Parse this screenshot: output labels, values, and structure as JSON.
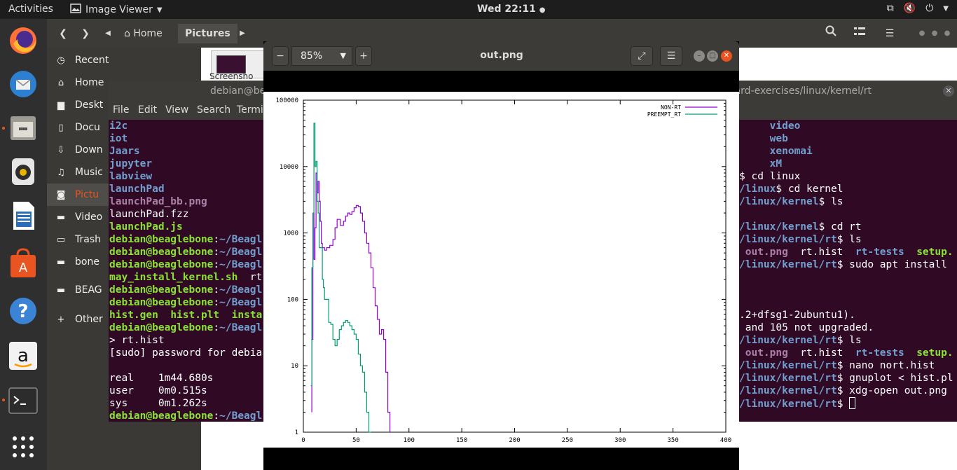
{
  "topbar": {
    "activities": "Activities",
    "app_name": "Image Viewer",
    "clock": "Wed 22:11"
  },
  "dock": {
    "items": [
      "firefox-icon",
      "thunderbird-icon",
      "files-icon",
      "rhythmbox-icon",
      "writer-icon",
      "software-icon",
      "help-icon",
      "amazon-icon",
      "terminal-icon",
      "app-grid-icon"
    ]
  },
  "files": {
    "breadcrumb": [
      "Home",
      "Pictures"
    ],
    "sidebar": [
      {
        "label": "Recent",
        "icon": "clock-icon"
      },
      {
        "label": "Home",
        "icon": "home-icon"
      },
      {
        "label": "Deskt",
        "icon": "folder-icon"
      },
      {
        "label": "Docu",
        "icon": "document-icon"
      },
      {
        "label": "Down",
        "icon": "download-icon"
      },
      {
        "label": "Music",
        "icon": "music-icon"
      },
      {
        "label": "Pictu",
        "icon": "camera-icon"
      },
      {
        "label": "Video",
        "icon": "video-icon"
      },
      {
        "label": "Trash",
        "icon": "trash-icon"
      },
      {
        "label": "bone",
        "icon": "drive-icon"
      },
      {
        "label": "BEAG",
        "icon": "drive-icon"
      },
      {
        "label": "Other",
        "icon": "plus-icon"
      }
    ],
    "thumb_label": "Screensho"
  },
  "terminal": {
    "title_left": "debian@be",
    "title_right": "oard-exercises/linux/kernel/rt",
    "menu": [
      "File",
      "Edit",
      "View",
      "Search",
      "Termi"
    ],
    "left_lines": [
      [
        {
          "t": "i2c",
          "c": "blue"
        }
      ],
      [
        {
          "t": "iot",
          "c": "blue"
        }
      ],
      [
        {
          "t": "Jaars",
          "c": "blue"
        }
      ],
      [
        {
          "t": "jupyter",
          "c": "blue"
        }
      ],
      [
        {
          "t": "labview",
          "c": "blue"
        }
      ],
      [
        {
          "t": "launchPad",
          "c": "blue"
        }
      ],
      [
        {
          "t": "launchPad_bb.png",
          "c": "mag"
        }
      ],
      [
        {
          "t": "launchPad.fzz",
          "c": "plain"
        }
      ],
      [
        {
          "t": "launchPad.js",
          "c": "green"
        }
      ],
      [
        {
          "t": "debian@beaglebone",
          "c": "green"
        },
        {
          "t": ":",
          "c": "plain"
        },
        {
          "t": "~/Beagl",
          "c": "blue"
        }
      ],
      [
        {
          "t": "debian@beaglebone",
          "c": "green"
        },
        {
          "t": ":",
          "c": "plain"
        },
        {
          "t": "~/Beagl",
          "c": "blue"
        }
      ],
      [
        {
          "t": "debian@beaglebone",
          "c": "green"
        },
        {
          "t": ":",
          "c": "plain"
        },
        {
          "t": "~/Beagl",
          "c": "blue"
        }
      ],
      [
        {
          "t": "may_install_kernel.sh",
          "c": "green"
        },
        {
          "t": "  rt",
          "c": "plain"
        }
      ],
      [
        {
          "t": "debian@beaglebone",
          "c": "green"
        },
        {
          "t": ":",
          "c": "plain"
        },
        {
          "t": "~/Beagl",
          "c": "blue"
        }
      ],
      [
        {
          "t": "debian@beaglebone",
          "c": "green"
        },
        {
          "t": ":",
          "c": "plain"
        },
        {
          "t": "~/Beagl",
          "c": "blue"
        }
      ],
      [
        {
          "t": "hist.gen",
          "c": "green"
        },
        {
          "t": "  ",
          "c": "plain"
        },
        {
          "t": "hist.plt",
          "c": "green"
        },
        {
          "t": "  ",
          "c": "plain"
        },
        {
          "t": "insta",
          "c": "green"
        }
      ],
      [
        {
          "t": "debian@beaglebone",
          "c": "green"
        },
        {
          "t": ":",
          "c": "plain"
        },
        {
          "t": "~/Beagl",
          "c": "blue"
        }
      ],
      [
        {
          "t": "> rt.hist",
          "c": "plain"
        }
      ],
      [
        {
          "t": "[sudo] password for debia",
          "c": "plain"
        }
      ],
      [
        {
          "t": "",
          "c": "plain"
        }
      ],
      [
        {
          "t": "real    1m44.680s",
          "c": "plain"
        }
      ],
      [
        {
          "t": "user    0m0.515s",
          "c": "plain"
        }
      ],
      [
        {
          "t": "sys     0m1.262s",
          "c": "plain"
        }
      ],
      [
        {
          "t": "debian@beaglebone",
          "c": "green"
        },
        {
          "t": ":",
          "c": "plain"
        },
        {
          "t": "~/Beagl",
          "c": "blue"
        }
      ]
    ],
    "right_lines": [
      [
        {
          "t": "     video",
          "c": "blue"
        }
      ],
      [
        {
          "t": "     web",
          "c": "blue"
        }
      ],
      [
        {
          "t": "     xenomai",
          "c": "blue"
        }
      ],
      [
        {
          "t": "     xM",
          "c": "blue"
        }
      ],
      [
        {
          "t": "$ cd linux",
          "c": "plain"
        }
      ],
      [
        {
          "t": "/linux",
          "c": "blue"
        },
        {
          "t": "$ cd kernel",
          "c": "plain"
        }
      ],
      [
        {
          "t": "/linux/kernel",
          "c": "blue"
        },
        {
          "t": "$ ls",
          "c": "plain"
        }
      ],
      [
        {
          "t": "",
          "c": "plain"
        }
      ],
      [
        {
          "t": "/linux/kernel",
          "c": "blue"
        },
        {
          "t": "$ cd rt",
          "c": "plain"
        }
      ],
      [
        {
          "t": "/linux/kernel/rt",
          "c": "blue"
        },
        {
          "t": "$ ls",
          "c": "plain"
        }
      ],
      [
        {
          "t": " out.png",
          "c": "mag"
        },
        {
          "t": "  rt.hist  ",
          "c": "plain"
        },
        {
          "t": "rt-tests",
          "c": "blue"
        },
        {
          "t": "  ",
          "c": "plain"
        },
        {
          "t": "setup.",
          "c": "green"
        }
      ],
      [
        {
          "t": "/linux/kernel/rt",
          "c": "blue"
        },
        {
          "t": "$ sudo apt install",
          "c": "plain"
        }
      ],
      [
        {
          "t": "",
          "c": "plain"
        }
      ],
      [
        {
          "t": "",
          "c": "plain"
        }
      ],
      [
        {
          "t": "",
          "c": "plain"
        }
      ],
      [
        {
          "t": ".2+dfsg1-2ubuntu1).",
          "c": "plain"
        }
      ],
      [
        {
          "t": " and 105 not upgraded.",
          "c": "plain"
        }
      ],
      [
        {
          "t": "/linux/kernel/rt",
          "c": "blue"
        },
        {
          "t": "$ ls",
          "c": "plain"
        }
      ],
      [
        {
          "t": " out.png",
          "c": "mag"
        },
        {
          "t": "  rt.hist  ",
          "c": "plain"
        },
        {
          "t": "rt-tests",
          "c": "blue"
        },
        {
          "t": "  ",
          "c": "plain"
        },
        {
          "t": "setup.",
          "c": "green"
        }
      ],
      [
        {
          "t": "/linux/kernel/rt",
          "c": "blue"
        },
        {
          "t": "$ nano nort.hist",
          "c": "plain"
        }
      ],
      [
        {
          "t": "/linux/kernel/rt",
          "c": "blue"
        },
        {
          "t": "$ gnuplot < hist.pl",
          "c": "plain"
        }
      ],
      [
        {
          "t": "/linux/kernel/rt",
          "c": "blue"
        },
        {
          "t": "$ xdg-open out.png",
          "c": "plain"
        }
      ],
      [
        {
          "t": "/linux/kernel/rt",
          "c": "blue"
        },
        {
          "t": "$ ",
          "c": "plain"
        },
        {
          "t": "",
          "c": "cursor"
        }
      ]
    ]
  },
  "viewer": {
    "zoom": "85%",
    "title": "out.png"
  },
  "chart_data": {
    "type": "line",
    "ylog": true,
    "ylim": [
      1,
      100000
    ],
    "xlim": [
      0,
      400
    ],
    "y_ticks": [
      "100000",
      "10000",
      "1000",
      "100",
      "10",
      "1"
    ],
    "x_ticks": [
      "0",
      "50",
      "100",
      "150",
      "200",
      "250",
      "300",
      "350",
      "400"
    ],
    "series": [
      {
        "name": "NON-RT",
        "color": "#9400d3",
        "points": [
          [
            8,
            2
          ],
          [
            8,
            25
          ],
          [
            9,
            2000
          ],
          [
            10,
            400
          ],
          [
            11,
            1200
          ],
          [
            12,
            8000
          ],
          [
            13,
            4000
          ],
          [
            14,
            6000
          ],
          [
            15,
            3000
          ],
          [
            16,
            1500
          ],
          [
            17,
            700
          ],
          [
            18,
            600
          ],
          [
            20,
            550
          ],
          [
            22,
            600
          ],
          [
            25,
            650
          ],
          [
            28,
            800
          ],
          [
            30,
            1200
          ],
          [
            32,
            1600
          ],
          [
            35,
            1300
          ],
          [
            38,
            1500
          ],
          [
            40,
            1800
          ],
          [
            42,
            2000
          ],
          [
            44,
            1900
          ],
          [
            46,
            2100
          ],
          [
            48,
            2400
          ],
          [
            50,
            2600
          ],
          [
            52,
            2500
          ],
          [
            54,
            2000
          ],
          [
            56,
            1500
          ],
          [
            58,
            1000
          ],
          [
            60,
            700
          ],
          [
            62,
            500
          ],
          [
            64,
            300
          ],
          [
            66,
            150
          ],
          [
            68,
            80
          ],
          [
            70,
            50
          ],
          [
            72,
            30
          ],
          [
            74,
            35
          ],
          [
            76,
            25
          ],
          [
            78,
            8
          ],
          [
            80,
            2
          ],
          [
            82,
            1
          ]
        ]
      },
      {
        "name": "PREEMPT_RT",
        "color": "#009e73",
        "points": [
          [
            7,
            5
          ],
          [
            8,
            300
          ],
          [
            9,
            2000
          ],
          [
            10,
            45000
          ],
          [
            11,
            10000
          ],
          [
            12,
            12000
          ],
          [
            13,
            3000
          ],
          [
            14,
            2000
          ],
          [
            15,
            600
          ],
          [
            17,
            600
          ],
          [
            18,
            200
          ],
          [
            19,
            150
          ],
          [
            20,
            100
          ],
          [
            24,
            45
          ],
          [
            26,
            42
          ],
          [
            28,
            25
          ],
          [
            30,
            20
          ],
          [
            32,
            25
          ],
          [
            34,
            35
          ],
          [
            36,
            40
          ],
          [
            38,
            45
          ],
          [
            40,
            48
          ],
          [
            42,
            45
          ],
          [
            44,
            40
          ],
          [
            46,
            35
          ],
          [
            48,
            30
          ],
          [
            50,
            25
          ],
          [
            52,
            15
          ],
          [
            54,
            10
          ],
          [
            56,
            8
          ],
          [
            58,
            4
          ],
          [
            60,
            2
          ],
          [
            62,
            1
          ],
          [
            64,
            1
          ]
        ]
      }
    ]
  }
}
